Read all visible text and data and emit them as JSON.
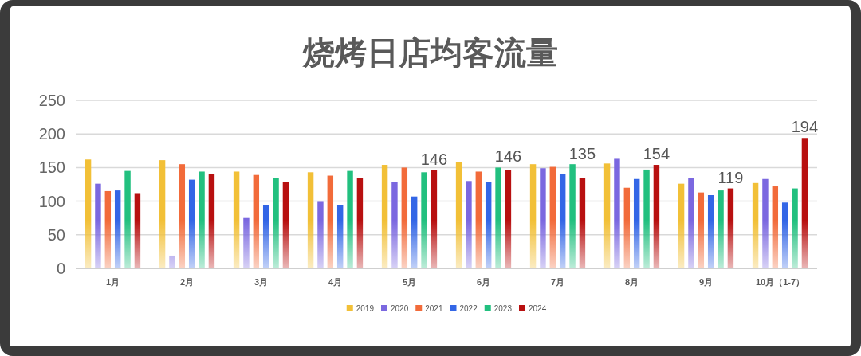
{
  "chart_data": {
    "type": "bar",
    "title": "烧烤日店均客流量",
    "categories": [
      "1月",
      "2月",
      "3月",
      "4月",
      "5月",
      "6月",
      "7月",
      "8月",
      "9月",
      "10月（1-7）"
    ],
    "series": [
      {
        "name": "2019",
        "color": "#f2c037",
        "values": [
          162,
          161,
          144,
          143,
          154,
          158,
          155,
          156,
          126,
          127
        ]
      },
      {
        "name": "2020",
        "color": "#7b68e0",
        "values": [
          126,
          19,
          75,
          99,
          128,
          130,
          149,
          163,
          135,
          133
        ]
      },
      {
        "name": "2021",
        "color": "#f26b3a",
        "values": [
          115,
          155,
          139,
          138,
          150,
          144,
          151,
          120,
          113,
          122
        ]
      },
      {
        "name": "2022",
        "color": "#3366e6",
        "values": [
          116,
          132,
          94,
          94,
          107,
          128,
          141,
          133,
          109,
          98
        ]
      },
      {
        "name": "2023",
        "color": "#22c07f",
        "values": [
          145,
          144,
          135,
          145,
          143,
          150,
          155,
          147,
          116,
          119
        ]
      },
      {
        "name": "2024",
        "color": "#b81010",
        "values": [
          112,
          140,
          129,
          135,
          146,
          146,
          135,
          154,
          119,
          194
        ],
        "value_labels": [
          null,
          null,
          null,
          null,
          "146",
          "146",
          "135",
          "154",
          "119",
          "194"
        ]
      }
    ],
    "ylim": [
      0,
      250
    ],
    "yticks": [
      0,
      50,
      100,
      150,
      200,
      250
    ],
    "grid": "y",
    "legend": "bottom"
  }
}
